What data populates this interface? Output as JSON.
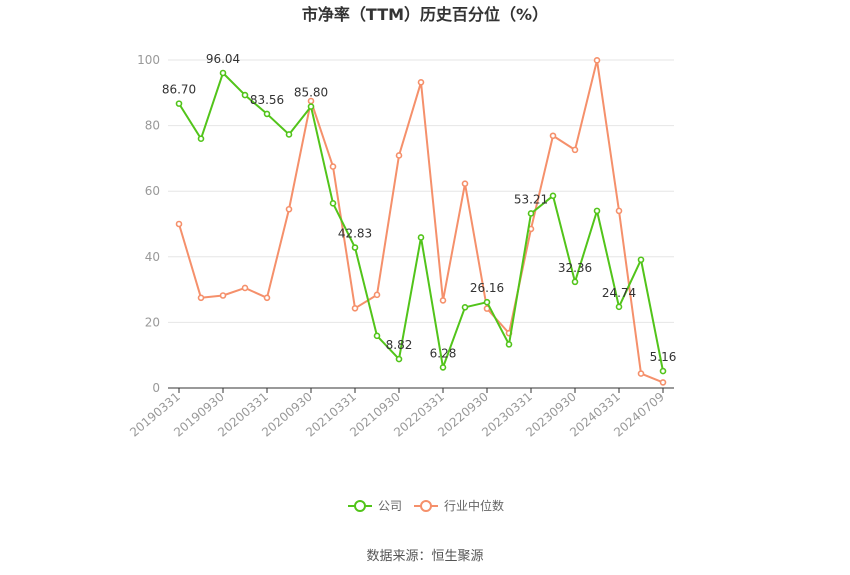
{
  "chart_data": {
    "type": "line",
    "title": "市净率（TTM）历史百分位（%）",
    "xlabel": "",
    "ylabel": "",
    "ylim": [
      0,
      100
    ],
    "yticks": [
      0,
      20,
      40,
      60,
      80,
      100
    ],
    "x": [
      "20190331",
      "20190630",
      "20190930",
      "20191231",
      "20200331",
      "20200630",
      "20200930",
      "20201231",
      "20210331",
      "20210630",
      "20210930",
      "20211231",
      "20220331",
      "20220630",
      "20220930",
      "20221231",
      "20230331",
      "20230630",
      "20230930",
      "20231231",
      "20240331",
      "20240630",
      "20240709"
    ],
    "xtick_labels": [
      "20190331",
      "20190930",
      "20200331",
      "20200930",
      "20210331",
      "20210930",
      "20220331",
      "20220930",
      "20230331",
      "20230930",
      "20240331",
      "20240709"
    ],
    "series": [
      {
        "name": "公司",
        "color": "#52c41a",
        "values": [
          86.7,
          76.0,
          96.04,
          89.3,
          83.56,
          77.3,
          85.8,
          56.3,
          42.83,
          15.9,
          8.82,
          45.9,
          6.28,
          24.6,
          26.16,
          13.3,
          53.21,
          58.6,
          32.36,
          54.0,
          24.74,
          39.1,
          5.16
        ],
        "labels": [
          "86.70",
          "",
          "96.04",
          "",
          "83.56",
          "",
          "85.80",
          "",
          "42.83",
          "",
          "8.82",
          "",
          "6.28",
          "",
          "26.16",
          "",
          "53.21",
          "",
          "32.36",
          "",
          "24.74",
          "",
          "5.16"
        ]
      },
      {
        "name": "行业中位数",
        "color": "#f5906b",
        "values": [
          50.0,
          27.5,
          28.2,
          30.5,
          27.5,
          54.5,
          87.5,
          67.5,
          24.3,
          28.4,
          70.9,
          93.2,
          26.7,
          62.3,
          24.2,
          16.7,
          48.5,
          76.9,
          72.6,
          99.9,
          54.0,
          4.4,
          1.7
        ]
      }
    ],
    "legend_position": "bottom",
    "grid": true
  },
  "source_text": "数据来源：恒生聚源"
}
